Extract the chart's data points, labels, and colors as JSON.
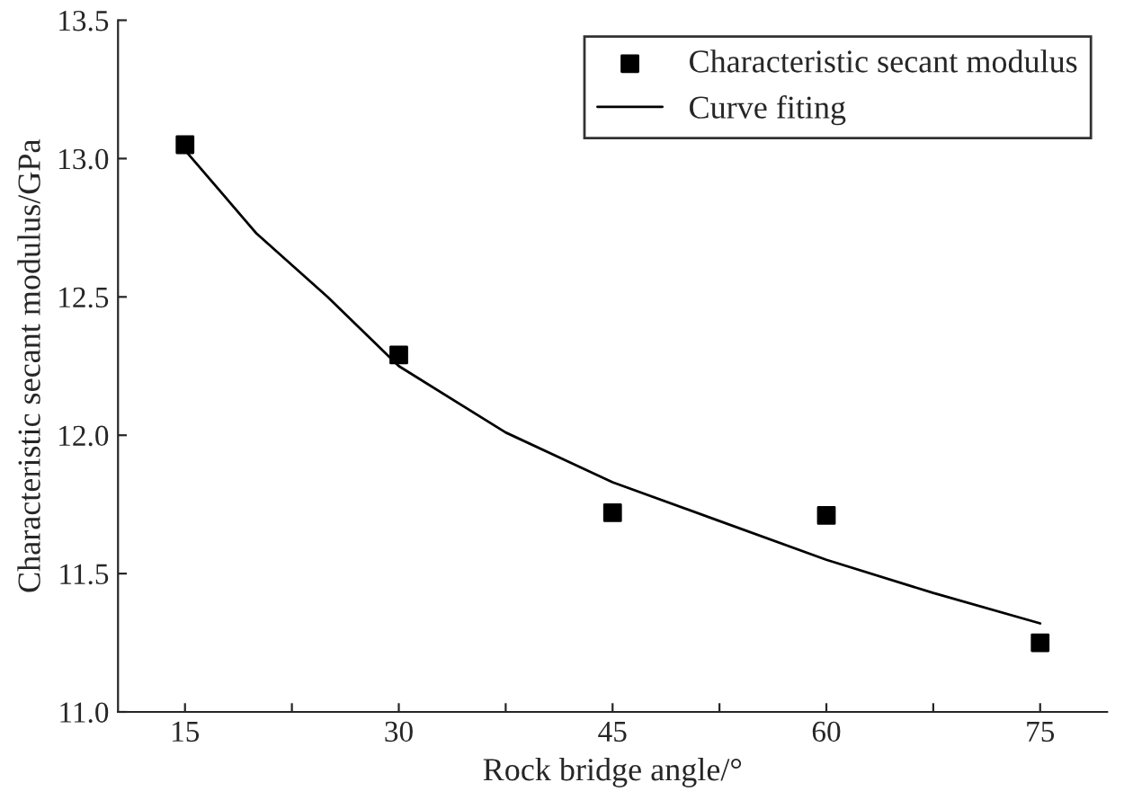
{
  "chart_data": {
    "type": "scatter",
    "xlabel": "Rock bridge angle/°",
    "ylabel": "Characteristic secant modulus/GPa",
    "xlim": [
      10.3,
      79.7
    ],
    "ylim": [
      11.0,
      13.5
    ],
    "xticks": [
      15,
      {
        "value": 22.5,
        "label": null
      },
      30,
      {
        "value": 37.5,
        "label": null
      },
      45,
      {
        "value": 52.5,
        "label": null
      },
      60,
      {
        "value": 67.5,
        "label": null
      },
      75
    ],
    "yticks": [
      {
        "value": 11.0,
        "label": "11.0"
      },
      11.5,
      {
        "value": 12.0,
        "label": "12.0"
      },
      12.5,
      {
        "value": 13.0,
        "label": "13.0"
      },
      13.5
    ],
    "grid": false,
    "legend": "top right",
    "series": [
      {
        "name": "Characteristic secant modulus",
        "marker": "square",
        "color": "#000000",
        "x": [
          15,
          30,
          45,
          60,
          75
        ],
        "values": [
          13.05,
          12.29,
          11.72,
          11.71,
          11.25
        ]
      },
      {
        "name": "Curve fiting",
        "type": "line",
        "marker": "none",
        "line_style": "solid",
        "color": "#000000",
        "x": [
          15,
          20,
          25,
          30,
          37.5,
          45,
          52.5,
          60,
          67.5,
          75
        ],
        "values": [
          13.03,
          12.73,
          12.5,
          12.25,
          12.01,
          11.83,
          11.69,
          11.55,
          11.43,
          11.32
        ]
      }
    ]
  }
}
